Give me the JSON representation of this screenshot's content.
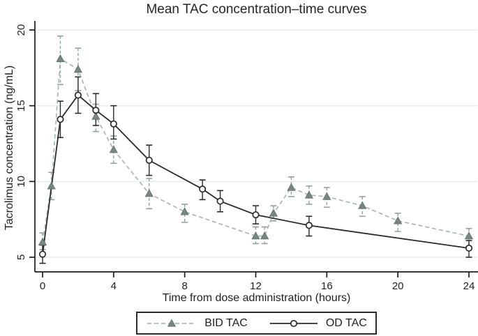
{
  "title": "Mean TAC concentration–time curves",
  "axes": {
    "x_label": "Time from dose administration (hours)",
    "y_label": "Tacrolimus concentration (ng/mL)",
    "x_ticks": [
      0,
      4,
      8,
      12,
      16,
      20,
      24
    ],
    "y_ticks": [
      5,
      10,
      15,
      20
    ]
  },
  "legend": {
    "items": [
      {
        "label": "BID TAC",
        "line_style": "dashed",
        "marker": "triangle"
      },
      {
        "label": "OD TAC",
        "line_style": "solid",
        "marker": "circle"
      }
    ]
  },
  "colors": {
    "bid_marker": "#77887f",
    "bid_marker_edge": "#5d6e67",
    "bid_line": "#a8b7b1",
    "bid_error": "#90a29b",
    "od": "#2b2b2b",
    "grid": "#e3ecec",
    "axis": "#1c1c1c",
    "text": "#1f1f1f",
    "background": "#ffffff"
  },
  "chart_data": {
    "type": "line",
    "title": "Mean TAC concentration–time curves",
    "xlabel": "Time from dose administration (hours)",
    "ylabel": "Tacrolimus concentration (ng/mL)",
    "xlim": [
      -0.5,
      24.6
    ],
    "ylim": [
      4.3,
      20.7
    ],
    "x_ticks": [
      0,
      4,
      8,
      12,
      16,
      20,
      24
    ],
    "y_ticks": [
      5,
      10,
      15,
      20
    ],
    "grid": "horizontal",
    "legend_position": "bottom-center",
    "error_bars": true,
    "series": [
      {
        "name": "BID TAC",
        "line_style": "dashed",
        "marker": "triangle",
        "points": [
          {
            "x": 0,
            "y": 6.0,
            "lo": 5.5,
            "hi": 6.6
          },
          {
            "x": 0.5,
            "y": 9.7,
            "lo": 8.8,
            "hi": 10.6
          },
          {
            "x": 1,
            "y": 18.1,
            "lo": 16.4,
            "hi": 19.6
          },
          {
            "x": 2,
            "y": 17.4,
            "lo": 16.0,
            "hi": 18.8
          },
          {
            "x": 3,
            "y": 14.3,
            "lo": 13.3,
            "hi": 15.1
          },
          {
            "x": 4,
            "y": 12.1,
            "lo": 11.2,
            "hi": 13.0
          },
          {
            "x": 6,
            "y": 9.2,
            "lo": 8.2,
            "hi": 10.2
          },
          {
            "x": 8,
            "y": 8.0,
            "lo": 7.3,
            "hi": 8.5
          },
          {
            "x": 12,
            "y": 6.4,
            "lo": 5.9,
            "hi": 7.0
          },
          {
            "x": 12.5,
            "y": 6.4,
            "lo": 5.9,
            "hi": 7.0
          },
          {
            "x": 13,
            "y": 7.9,
            "lo": 7.4,
            "hi": 8.4
          },
          {
            "x": 14,
            "y": 9.6,
            "lo": 9.0,
            "hi": 10.3
          },
          {
            "x": 15,
            "y": 9.1,
            "lo": 8.5,
            "hi": 9.7
          },
          {
            "x": 16,
            "y": 9.0,
            "lo": 8.3,
            "hi": 9.6
          },
          {
            "x": 18,
            "y": 8.4,
            "lo": 7.7,
            "hi": 9.0
          },
          {
            "x": 20,
            "y": 7.4,
            "lo": 6.7,
            "hi": 7.9
          },
          {
            "x": 24,
            "y": 6.4,
            "lo": 5.7,
            "hi": 6.9
          }
        ]
      },
      {
        "name": "OD TAC",
        "line_style": "solid",
        "marker": "circle",
        "points": [
          {
            "x": 0,
            "y": 5.2,
            "lo": 4.6,
            "hi": 5.8
          },
          {
            "x": 1,
            "y": 14.1,
            "lo": 12.9,
            "hi": 15.3
          },
          {
            "x": 2,
            "y": 15.7,
            "lo": 14.5,
            "hi": 16.9
          },
          {
            "x": 3,
            "y": 14.7,
            "lo": 13.7,
            "hi": 15.8
          },
          {
            "x": 4,
            "y": 13.8,
            "lo": 12.8,
            "hi": 15.0
          },
          {
            "x": 6,
            "y": 11.4,
            "lo": 10.4,
            "hi": 12.4
          },
          {
            "x": 9,
            "y": 9.5,
            "lo": 8.8,
            "hi": 10.1
          },
          {
            "x": 10,
            "y": 8.7,
            "lo": 8.0,
            "hi": 9.4
          },
          {
            "x": 12,
            "y": 7.8,
            "lo": 7.2,
            "hi": 8.4
          },
          {
            "x": 15,
            "y": 7.1,
            "lo": 6.4,
            "hi": 7.7
          },
          {
            "x": 24,
            "y": 5.6,
            "lo": 5.0,
            "hi": 6.1
          }
        ]
      }
    ]
  }
}
